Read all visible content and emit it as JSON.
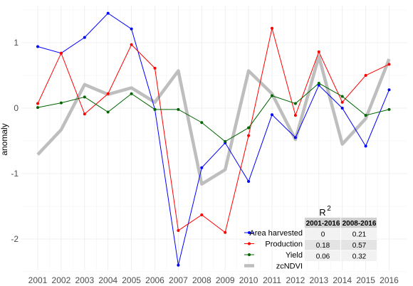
{
  "chart_data": {
    "type": "line",
    "ylabel": "anomaly",
    "xlabel": "",
    "x": [
      2001,
      2002,
      2003,
      2004,
      2005,
      2006,
      2007,
      2008,
      2009,
      2010,
      2011,
      2012,
      2013,
      2014,
      2015,
      2016
    ],
    "ylim": [
      -2.5,
      1.6
    ],
    "yticks": [
      1,
      0,
      -1,
      -2
    ],
    "grid": true,
    "series": [
      {
        "name": "Area harvested",
        "color": "#0000ff",
        "style": "line-point",
        "values": [
          0.94,
          0.84,
          1.08,
          1.45,
          1.21,
          -0.02,
          -2.4,
          -0.91,
          -0.53,
          -1.12,
          -0.1,
          -0.45,
          0.35,
          0.0,
          -0.58,
          0.28
        ]
      },
      {
        "name": "Production",
        "color": "#ff0000",
        "style": "line-point",
        "values": [
          0.07,
          0.84,
          -0.09,
          0.22,
          0.97,
          0.61,
          -1.87,
          -1.63,
          -1.9,
          -0.42,
          1.22,
          -0.11,
          0.86,
          0.09,
          0.5,
          0.67
        ]
      },
      {
        "name": "Yield",
        "color": "#006400",
        "style": "line-point",
        "values": [
          0.01,
          0.08,
          0.17,
          -0.06,
          0.22,
          -0.02,
          -0.02,
          -0.22,
          -0.51,
          -0.3,
          0.19,
          0.07,
          0.38,
          0.18,
          -0.11,
          -0.02
        ]
      },
      {
        "name": "zcNDVI",
        "color": "#bebebe",
        "style": "thick-line",
        "values": [
          -0.71,
          -0.33,
          0.36,
          0.21,
          0.31,
          0.09,
          0.57,
          -1.16,
          -0.94,
          0.57,
          0.22,
          -0.48,
          0.79,
          -0.55,
          -0.16,
          0.75
        ]
      }
    ],
    "legend_position": "bottom-right",
    "r2_table": {
      "title": "R",
      "title_sup": "2",
      "columns": [
        "2001-2016",
        "2008-2016"
      ],
      "rows": [
        {
          "label": "Area harvested",
          "values": [
            "0",
            "0.21"
          ]
        },
        {
          "label": "Production",
          "values": [
            "0.18",
            "0.57"
          ]
        },
        {
          "label": "Yield",
          "values": [
            "0.06",
            "0.32"
          ]
        }
      ]
    }
  }
}
